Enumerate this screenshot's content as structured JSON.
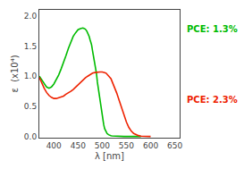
{
  "chart_data": {
    "type": "line",
    "xlabel": "λ [nm]",
    "ylabel": "ε  (x10⁴)",
    "xlim": [
      370,
      660
    ],
    "ylim": [
      -0.02,
      2.1
    ],
    "xticks": [
      400,
      450,
      500,
      550,
      600,
      650
    ],
    "yticks": [
      {
        "value": 0,
        "label": "0.0"
      },
      0.5,
      {
        "value": 1,
        "label": "1.0"
      },
      1.5,
      {
        "value": 2,
        "label": "2.0"
      }
    ],
    "grid": false,
    "series": [
      {
        "color": "#00bb00",
        "x": [
          370,
          373,
          376,
          380,
          385,
          390,
          395,
          400,
          405,
          410,
          415,
          420,
          425,
          430,
          435,
          440,
          445,
          450,
          455,
          460,
          463,
          465,
          468,
          470,
          473,
          475,
          478,
          480,
          483,
          485,
          488,
          490,
          493,
          495,
          498,
          500,
          503,
          505,
          508,
          510,
          513,
          515,
          518,
          520,
          523,
          525,
          528,
          530,
          535,
          540,
          545,
          550,
          555,
          560,
          565,
          570,
          575,
          580
        ],
        "values": [
          1.0,
          0.96,
          0.93,
          0.88,
          0.82,
          0.8,
          0.82,
          0.87,
          0.94,
          1.02,
          1.12,
          1.22,
          1.34,
          1.46,
          1.57,
          1.66,
          1.72,
          1.77,
          1.79,
          1.8,
          1.79,
          1.78,
          1.75,
          1.72,
          1.66,
          1.6,
          1.52,
          1.42,
          1.3,
          1.18,
          1.05,
          0.9,
          0.74,
          0.58,
          0.43,
          0.3,
          0.2,
          0.13,
          0.08,
          0.05,
          0.03,
          0.02,
          0.015,
          0.01,
          0.008,
          0.005,
          0.003,
          0.002,
          0.001,
          0.001,
          0.0,
          0.0,
          0.0,
          0.0,
          0.0,
          0.0,
          0.0,
          0.0
        ]
      },
      {
        "color": "#ee2200",
        "x": [
          370,
          373,
          376,
          380,
          385,
          390,
          395,
          400,
          405,
          410,
          415,
          420,
          425,
          430,
          435,
          440,
          445,
          450,
          455,
          460,
          465,
          470,
          475,
          480,
          485,
          490,
          495,
          500,
          503,
          505,
          508,
          510,
          513,
          515,
          518,
          520,
          525,
          530,
          535,
          540,
          545,
          550,
          555,
          560,
          565,
          570,
          575,
          580,
          585,
          590,
          595,
          600
        ],
        "values": [
          0.98,
          0.92,
          0.87,
          0.8,
          0.73,
          0.68,
          0.65,
          0.63,
          0.63,
          0.64,
          0.65,
          0.67,
          0.7,
          0.72,
          0.75,
          0.78,
          0.82,
          0.86,
          0.89,
          0.93,
          0.97,
          1.0,
          1.03,
          1.05,
          1.06,
          1.07,
          1.07,
          1.07,
          1.07,
          1.06,
          1.05,
          1.03,
          1.01,
          0.99,
          0.96,
          0.92,
          0.83,
          0.72,
          0.6,
          0.47,
          0.35,
          0.24,
          0.15,
          0.09,
          0.05,
          0.03,
          0.015,
          0.007,
          0.003,
          0.001,
          0.0,
          0.0
        ]
      }
    ],
    "annotations": [
      {
        "text": "PCE: 1.3%",
        "color": "#00bb00"
      },
      {
        "text": "PCE: 2.3%",
        "color": "#ee2200"
      }
    ]
  }
}
